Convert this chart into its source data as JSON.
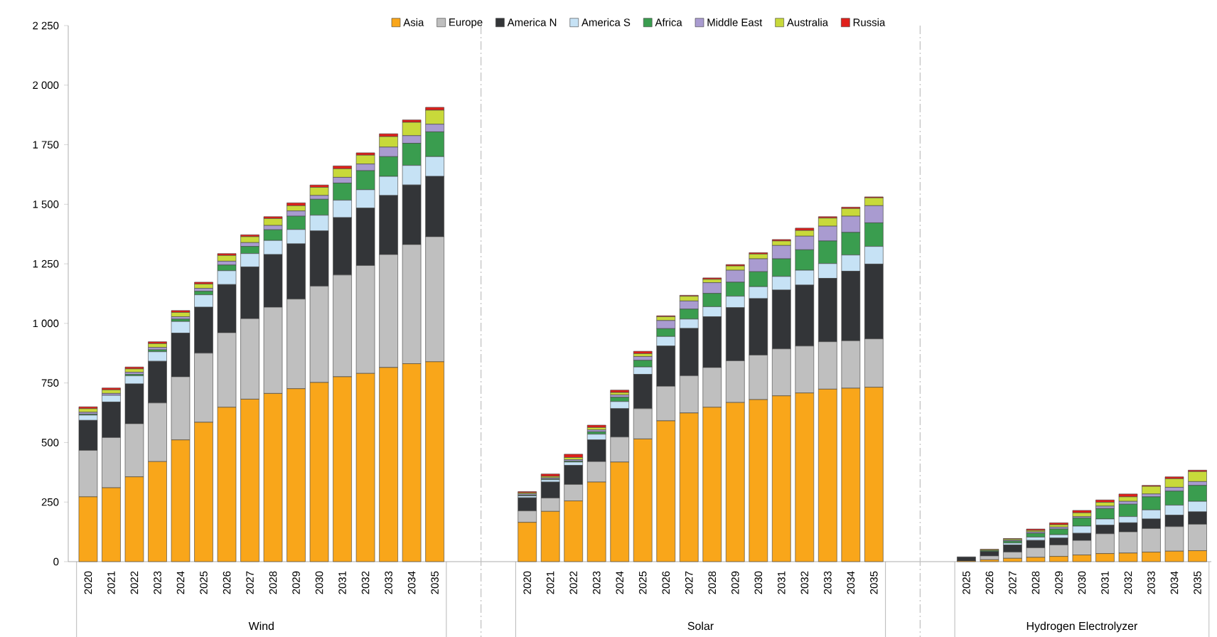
{
  "chart_data": {
    "type": "bar",
    "stacked": true,
    "legend": "top",
    "categories": [
      "2020",
      "2021",
      "2022",
      "2023",
      "2024",
      "2025",
      "2026",
      "2027",
      "2028",
      "2029",
      "2030",
      "2031",
      "2032",
      "2033",
      "2034",
      "2035",
      null,
      null,
      null,
      "2020",
      "2021",
      "2022",
      "2023",
      "2024",
      "2025",
      "2026",
      "2027",
      "2028",
      "2029",
      "2030",
      "2031",
      "2032",
      "2033",
      "2034",
      "2035",
      null,
      null,
      null,
      "2025",
      "2026",
      "2027",
      "2028",
      "2029",
      "2030",
      "2031",
      "2032",
      "2033",
      "2034",
      "2035"
    ],
    "ylim": [
      0,
      2250
    ],
    "yticks": [
      0,
      250,
      500,
      750,
      {
        "value": 1000,
        "label": "1 000"
      },
      {
        "value": 1250,
        "label": "1 250"
      },
      {
        "value": 1500,
        "label": "1 500"
      },
      {
        "value": 1750,
        "label": "1 750"
      },
      {
        "value": 2000,
        "label": "2 000"
      },
      {
        "value": 2250,
        "label": "2 250"
      }
    ],
    "annotations": [
      "Wind",
      "Solar",
      "Hydrogen Electrolyzer"
    ],
    "series": [
      {
        "name": "Asia",
        "color": "#f9a61a",
        "values": [
          272,
          310,
          356,
          420,
          511,
          585,
          648,
          682,
          706,
          726,
          752,
          776,
          790,
          815,
          831,
          839,
          null,
          null,
          null,
          165,
          211,
          255,
          334,
          418,
          515,
          591,
          624,
          648,
          668,
          680,
          696,
          708,
          724,
          728,
          732,
          null,
          null,
          null,
          3,
          8,
          14,
          18,
          22,
          28,
          34,
          36,
          40,
          44,
          46
        ]
      },
      {
        "name": "Europe",
        "color": "#bfbfbf",
        "values": [
          195,
          211,
          223,
          246,
          265,
          290,
          313,
          338,
          362,
          376,
          404,
          427,
          453,
          474,
          500,
          525,
          null,
          null,
          null,
          48,
          56,
          69,
          86,
          105,
          127,
          145,
          156,
          167,
          175,
          187,
          197,
          197,
          199,
          199,
          203,
          null,
          null,
          null,
          0,
          16,
          26,
          40,
          48,
          61,
          83,
          89,
          99,
          103,
          111
        ]
      },
      {
        "name": "America N",
        "color": "#333538",
        "values": [
          126,
          149,
          167,
          175,
          183,
          193,
          202,
          217,
          221,
          232,
          232,
          241,
          241,
          248,
          250,
          253,
          null,
          null,
          null,
          55,
          67,
          80,
          91,
          119,
          144,
          169,
          199,
          213,
          223,
          237,
          247,
          256,
          266,
          292,
          314,
          null,
          null,
          null,
          17,
          18,
          30,
          31,
          29,
          30,
          36,
          38,
          40,
          48,
          52
        ]
      },
      {
        "name": "America S",
        "color": "#c6e2f5",
        "values": [
          22,
          28,
          34,
          40,
          49,
          52,
          58,
          56,
          59,
          60,
          66,
          73,
          77,
          80,
          82,
          83,
          null,
          null,
          null,
          8,
          10,
          14,
          24,
          30,
          31,
          40,
          39,
          42,
          48,
          50,
          57,
          62,
          62,
          68,
          74,
          null,
          null,
          null,
          0,
          0,
          8,
          14,
          14,
          30,
          26,
          26,
          38,
          42,
          44
        ]
      },
      {
        "name": "Africa",
        "color": "#3a9d4f",
        "values": [
          4,
          null,
          6,
          8,
          10,
          15,
          24,
          30,
          45,
          56,
          67,
          72,
          80,
          83,
          93,
          104,
          null,
          null,
          null,
          3,
          3,
          4,
          10,
          18,
          28,
          33,
          42,
          56,
          59,
          63,
          74,
          86,
          95,
          95,
          99,
          null,
          null,
          null,
          0,
          4,
          8,
          16,
          24,
          34,
          44,
          52,
          55,
          59,
          67
        ]
      },
      {
        "name": "Middle East",
        "color": "#a99bd0",
        "values": [
          8,
          8,
          9,
          10,
          10,
          12,
          16,
          16,
          18,
          22,
          16,
          24,
          28,
          40,
          32,
          32,
          null,
          null,
          null,
          5,
          5,
          6,
          8,
          10,
          16,
          34,
          34,
          45,
          50,
          54,
          56,
          57,
          62,
          68,
          72,
          null,
          null,
          null,
          0,
          0,
          4,
          6,
          8,
          6,
          10,
          12,
          12,
          16,
          16
        ]
      },
      {
        "name": "Australia",
        "color": "#c8d93a",
        "values": [
          15,
          15,
          14,
          16,
          18,
          18,
          24,
          25,
          29,
          22,
          34,
          36,
          37,
          44,
          56,
          59,
          null,
          null,
          null,
          5,
          6,
          9,
          10,
          10,
          12,
          16,
          20,
          14,
          18,
          20,
          19,
          24,
          34,
          32,
          33,
          null,
          null,
          null,
          0,
          4,
          5,
          6,
          10,
          16,
          16,
          19,
          32,
          36,
          42
        ]
      },
      {
        "name": "Russia",
        "color": "#e0201b",
        "values": [
          8,
          8,
          8,
          8,
          8,
          8,
          8,
          8,
          8,
          12,
          10,
          12,
          10,
          12,
          10,
          12,
          null,
          null,
          null,
          5,
          10,
          14,
          10,
          10,
          10,
          4,
          4,
          6,
          6,
          6,
          6,
          10,
          6,
          6,
          4,
          null,
          null,
          null,
          0,
          2,
          2,
          6,
          8,
          10,
          10,
          12,
          4,
          8,
          6
        ]
      }
    ]
  }
}
